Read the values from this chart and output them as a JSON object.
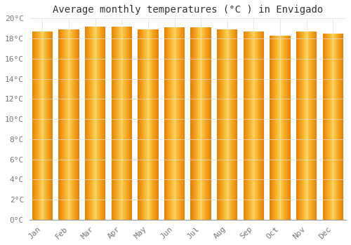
{
  "title": "Average monthly temperatures (°C ) in Envigado",
  "months": [
    "Jan",
    "Feb",
    "Mar",
    "Apr",
    "May",
    "Jun",
    "Jul",
    "Aug",
    "Sep",
    "Oct",
    "Nov",
    "Dec"
  ],
  "values": [
    18.7,
    18.9,
    19.2,
    19.2,
    18.9,
    19.1,
    19.1,
    18.9,
    18.7,
    18.3,
    18.7,
    18.5
  ],
  "bar_color_center": "#FFD04A",
  "bar_color_edge": "#E88000",
  "ylim": [
    0,
    20
  ],
  "yticks": [
    0,
    2,
    4,
    6,
    8,
    10,
    12,
    14,
    16,
    18,
    20
  ],
  "background_color": "#FFFFFF",
  "grid_color": "#DDDDDD",
  "title_fontsize": 10,
  "tick_fontsize": 8
}
